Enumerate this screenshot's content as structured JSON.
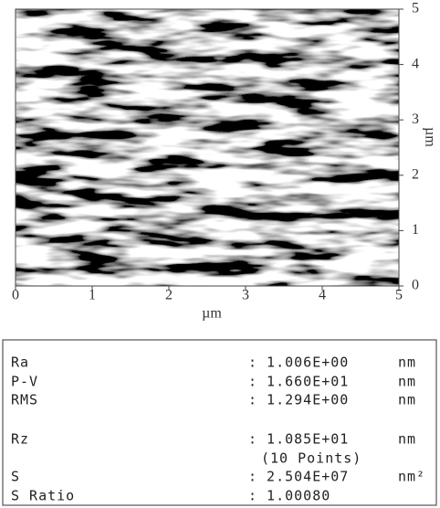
{
  "figure": {
    "x_ticks": [
      0,
      1,
      2,
      3,
      4,
      5
    ],
    "y_ticks": [
      0,
      1,
      2,
      3,
      4,
      5
    ],
    "x_label": "µm",
    "y_label": "µm"
  },
  "table": {
    "rows": [
      {
        "label": "Ra",
        "value": ": 1.006E+00",
        "unit": "nm"
      },
      {
        "label": "P-V",
        "value": ": 1.660E+01",
        "unit": "nm"
      },
      {
        "label": "RMS",
        "value": ": 1.294E+00",
        "unit": "nm"
      },
      {
        "label": "Rz",
        "value": ": 1.085E+01",
        "unit": "nm",
        "note": "(10 Points)"
      },
      {
        "label": "S",
        "value": ": 2.504E+07",
        "unit": "nm²"
      },
      {
        "label": "S Ratio",
        "value": ": 1.00080"
      }
    ]
  }
}
